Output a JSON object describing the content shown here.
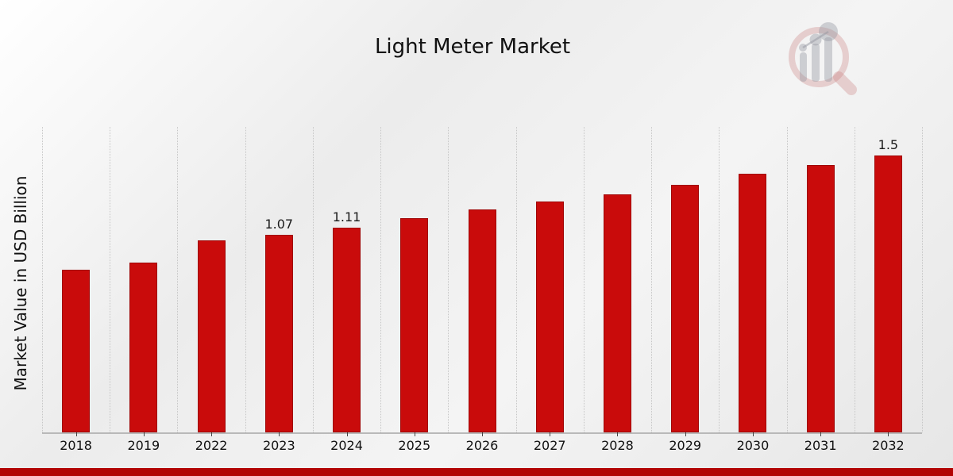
{
  "page": {
    "title": "Light Meter Market"
  },
  "logo": {
    "name": "mrfr-magnifier-chart-logo",
    "ring_color": "rgba(198,120,120,0.30)",
    "bar_color": "rgba(150,152,162,0.42)",
    "line_color": "rgba(150,152,162,0.50)"
  },
  "colors": {
    "bar_fill": "#c90b0b",
    "bar_edge": "#a00707",
    "footer_bar": "#b20404",
    "gridline": "#c6c6c6",
    "axis_line": "#b9b9b9",
    "text": "#1a1a1a"
  },
  "chart_data": {
    "type": "bar",
    "title": "Light Meter Market",
    "xlabel": "",
    "ylabel": "Market Value in USD Billion",
    "categories": [
      "2018",
      "2019",
      "2022",
      "2023",
      "2024",
      "2025",
      "2026",
      "2027",
      "2028",
      "2029",
      "2030",
      "2031",
      "2032"
    ],
    "values": [
      0.88,
      0.92,
      1.04,
      1.07,
      1.11,
      1.16,
      1.21,
      1.25,
      1.29,
      1.34,
      1.4,
      1.45,
      1.5
    ],
    "point_labels": [
      "",
      "",
      "",
      "1.07",
      "1.11",
      "",
      "",
      "",
      "",
      "",
      "",
      "",
      "1.5"
    ],
    "ylim": [
      0,
      1.655
    ],
    "grid": "vertical-dotted",
    "legend": "none",
    "bar_color": "#c90b0b"
  }
}
